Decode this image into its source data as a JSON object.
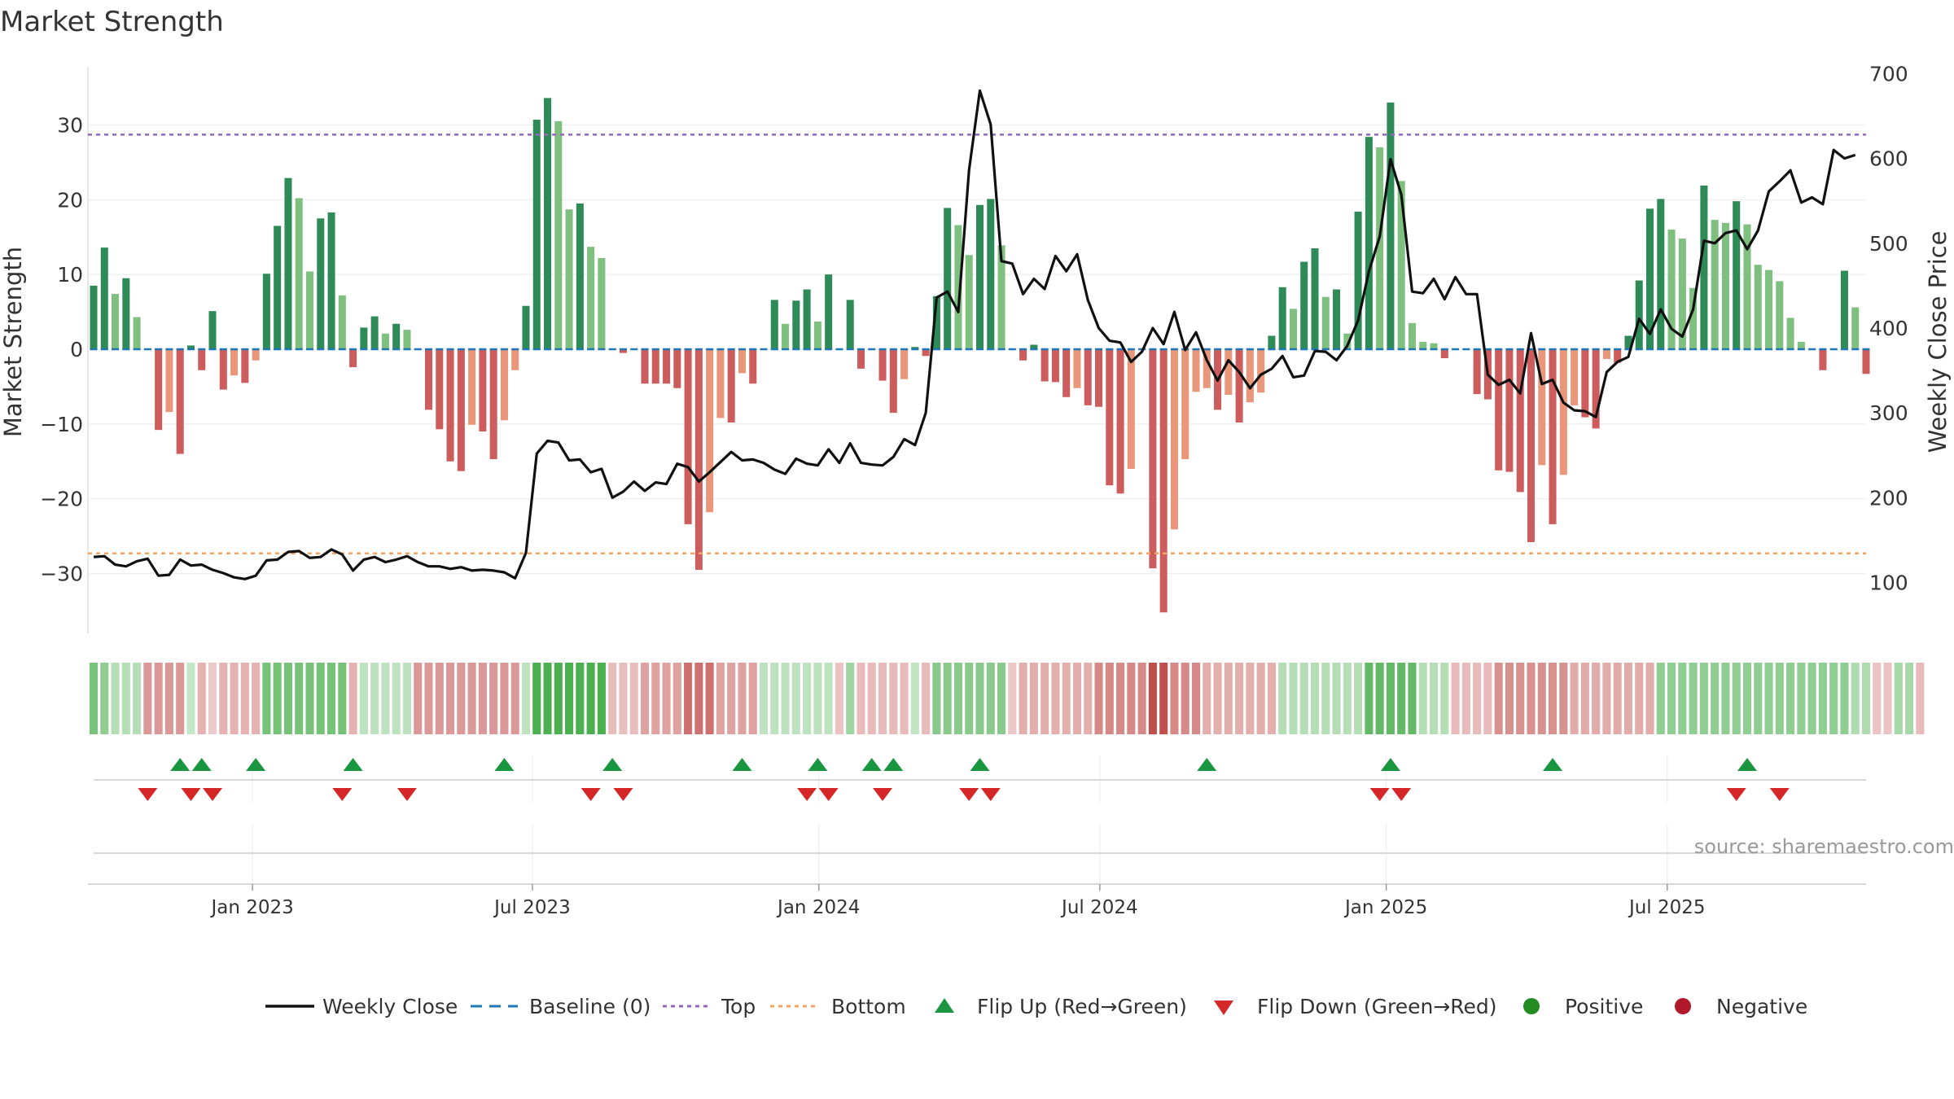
{
  "chart_data": {
    "type": "bar",
    "title": "Market Strength",
    "ylabel_left": "Market Strength",
    "ylabel_right": "Weekly Close Price",
    "ylim_left": [
      -38,
      38
    ],
    "ylim_right": [
      40,
      710
    ],
    "yticks_left": [
      30,
      20,
      10,
      0,
      -10,
      -20,
      -30
    ],
    "yticks_left_labels": [
      "30",
      "20",
      "10",
      "0",
      "−10",
      "−20",
      "−30"
    ],
    "yticks_right": [
      700,
      600,
      500,
      400,
      300,
      200,
      100
    ],
    "top_level": 28.7,
    "bottom_level": -27.3,
    "x_tick_labels": [
      "Jan 2023",
      "Jul 2023",
      "Jan 2024",
      "Jul 2024",
      "Jan 2025",
      "Jul 2025"
    ],
    "x_tick_weeks": [
      14.7,
      40.6,
      67.1,
      93.1,
      119.6,
      145.6
    ],
    "source_text": "source: sharemaestro.com",
    "legend": {
      "weekly_close": "Weekly Close",
      "baseline": "Baseline (0)",
      "top": "Top",
      "bottom": "Bottom",
      "flip_up": "Flip Up (Red→Green)",
      "flip_down": "Flip Down (Green→Red)",
      "positive": "Positive",
      "negative": "Negative"
    },
    "strength": [
      8.5,
      13.6,
      7.4,
      9.5,
      4.3,
      0,
      -10.8,
      -8.4,
      -14,
      0.5,
      -2.8,
      5.1,
      -5.4,
      -3.5,
      -4.5,
      -1.5,
      10.1,
      16.5,
      22.9,
      20.2,
      10.4,
      17.5,
      18.3,
      7.2,
      -2.4,
      2.9,
      4.4,
      2.1,
      3.4,
      2.6,
      0,
      -8.1,
      -10.7,
      -15,
      -16.3,
      -10.1,
      -11,
      -14.7,
      -9.5,
      -2.8,
      5.8,
      30.7,
      33.6,
      30.5,
      18.7,
      19.5,
      13.7,
      12.2,
      0,
      -0.5,
      0,
      -4.6,
      -4.6,
      -4.6,
      -5.2,
      -23.4,
      -29.5,
      -21.8,
      -9.2,
      -9.8,
      -3.2,
      -4.6,
      0,
      6.6,
      3.4,
      6.5,
      8,
      3.7,
      10,
      0,
      6.6,
      -2.6,
      0,
      -4.2,
      -8.5,
      -4,
      0.3,
      -0.9,
      7.1,
      18.9,
      16.6,
      12.6,
      19.3,
      20.1,
      13.9,
      0,
      -1.5,
      0.6,
      -4.3,
      -4.4,
      -6.4,
      -5.2,
      -7.5,
      -7.7,
      -18.2,
      -19.3,
      -16,
      0,
      -29.3,
      -35.2,
      -24.1,
      -14.7,
      -5.7,
      -5.2,
      -8.1,
      -6.1,
      -9.8,
      -7.1,
      -5.8,
      1.8,
      8.3,
      5.4,
      11.7,
      13.5,
      7,
      8,
      2.1,
      18.4,
      28.4,
      27,
      33,
      22.5,
      3.5,
      1,
      0.8,
      -1.2,
      0,
      0,
      -6,
      -6.7,
      -16.2,
      -16.4,
      -19.1,
      -25.8,
      -15.5,
      -23.4,
      -16.8,
      -7.5,
      -9.1,
      -10.6,
      -1.3,
      -1.8,
      1.8,
      9.2,
      18.8,
      20.1,
      16,
      14.8,
      8.2,
      21.9,
      17.3,
      16.9,
      19.8,
      16.7,
      11.3,
      10.6,
      9.1,
      4.2,
      1,
      0,
      -2.8,
      0,
      10.5,
      5.6,
      -3.3
    ],
    "close": [
      130,
      131,
      121,
      119,
      125,
      128,
      108,
      109,
      127,
      120,
      121,
      115,
      111,
      106,
      104,
      108,
      126,
      127,
      136,
      137,
      129,
      130,
      139,
      133,
      114,
      127,
      130,
      124,
      127,
      131,
      124,
      119,
      119,
      116,
      118,
      114,
      115,
      114,
      112,
      105,
      135,
      252,
      267,
      265,
      244,
      245,
      230,
      234,
      200,
      207,
      219,
      208,
      218,
      216,
      240,
      236,
      219,
      230,
      242,
      254,
      244,
      245,
      241,
      233,
      228,
      246,
      240,
      238,
      257,
      241,
      264,
      241,
      239,
      238,
      248,
      269,
      262,
      300,
      436,
      443,
      419,
      586,
      680,
      640,
      479,
      476,
      440,
      458,
      446,
      485,
      467,
      487,
      433,
      400,
      385,
      383,
      360,
      372,
      400,
      381,
      419,
      374,
      395,
      362,
      338,
      362,
      348,
      329,
      345,
      352,
      367,
      342,
      344,
      373,
      372,
      362,
      379,
      409,
      467,
      508,
      599,
      557,
      443,
      441,
      458,
      434,
      460,
      440,
      440,
      345,
      333,
      339,
      323,
      394,
      334,
      339,
      312,
      303,
      302,
      295,
      348,
      360,
      366,
      411,
      393,
      422,
      399,
      390,
      422,
      503,
      500,
      512,
      515,
      493,
      515,
      561,
      573,
      586,
      548,
      554,
      546,
      610,
      600,
      604
    ],
    "bands": [
      2.2,
      1.6,
      0.6,
      0.6,
      0.6,
      -1.4,
      -1.4,
      -1.4,
      -1.4,
      0.2,
      -0.8,
      -0.2,
      -0.8,
      -0.8,
      -0.8,
      -0.8,
      2.3,
      2.3,
      2.3,
      2.3,
      2.3,
      2.3,
      2.3,
      2.3,
      -0.8,
      0.4,
      0.4,
      0.4,
      0.4,
      0.4,
      -1.4,
      -1.4,
      -1.4,
      -1.4,
      -1.4,
      -1.4,
      -1.4,
      -1.4,
      -1.4,
      -1.4,
      0.4,
      3.4,
      3.4,
      3.4,
      3.4,
      3.4,
      3.4,
      3.4,
      -0.5,
      -0.5,
      -0.5,
      -1.2,
      -1.2,
      -1.2,
      -1.2,
      -2.4,
      -2.4,
      -2.4,
      -1.2,
      -1.2,
      -1.2,
      -1.2,
      0.4,
      0.4,
      0.4,
      0.4,
      0.4,
      0.4,
      0.4,
      -0.4,
      1.2,
      -0.6,
      -0.6,
      -0.6,
      -0.6,
      -0.6,
      0.3,
      -0.6,
      1.8,
      1.8,
      1.8,
      1.8,
      1.8,
      1.8,
      1.8,
      -0.3,
      -0.9,
      -0.9,
      -0.9,
      -0.9,
      -0.9,
      -0.9,
      -0.9,
      -1.8,
      -1.8,
      -1.8,
      -1.8,
      -1.8,
      -3.2,
      -3.2,
      -1.8,
      -1.8,
      -1.8,
      -0.9,
      -0.9,
      -0.9,
      -0.9,
      -0.9,
      -0.9,
      -0.9,
      0.6,
      0.6,
      0.6,
      0.6,
      0.6,
      0.6,
      0.6,
      0.6,
      2.8,
      2.8,
      2.8,
      2.8,
      2.8,
      0.6,
      0.6,
      0.6,
      -0.6,
      -0.6,
      -0.6,
      -0.6,
      -1.6,
      -1.6,
      -1.6,
      -1.6,
      -1.6,
      -1.6,
      -1.6,
      -1.0,
      -1.0,
      -1.0,
      -1.0,
      -1.0,
      -1.0,
      -1.0,
      -1.0,
      1.6,
      1.6,
      1.6,
      1.6,
      1.6,
      1.6,
      1.6,
      1.6,
      1.6,
      1.6,
      1.6,
      1.6,
      1.6,
      1.6,
      1.6,
      1.6,
      1.6,
      1.6,
      0.8,
      0.8,
      -0.4,
      -0.4,
      1.0,
      1.0,
      -0.6
    ],
    "flip_up_weeks": [
      8,
      10,
      15,
      24,
      38,
      48,
      60,
      67,
      72,
      74,
      82,
      103,
      120,
      135,
      153
    ],
    "flip_down_weeks": [
      5,
      9,
      11,
      23,
      29,
      46,
      49,
      66,
      68,
      73,
      81,
      83,
      119,
      121,
      152,
      156
    ],
    "colors": {
      "strong_green": "#2e8b57",
      "light_green": "#7fbf7f",
      "strong_red": "#cd5c5c",
      "light_red": "#e9967a",
      "weekly_close": "#111111",
      "baseline": "#1f77b4",
      "top": "#9467bd",
      "bottom": "#f4a460",
      "flip_up": "#1a9641",
      "flip_down": "#d62728",
      "positive": "#228b22",
      "negative": "#b2182b"
    }
  }
}
